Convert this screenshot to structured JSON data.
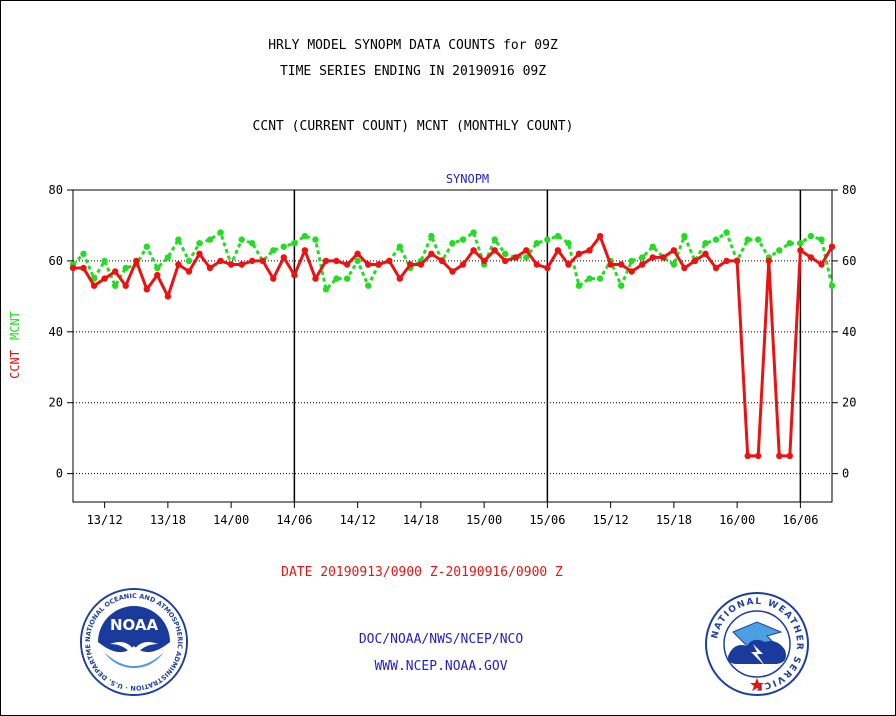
{
  "header": {
    "title_line1": "HRLY MODEL SYNOPM DATA COUNTS for 09Z",
    "title_line2": "TIME SERIES ENDING IN 20190916 09Z",
    "subtitle": "CCNT (CURRENT COUNT) MCNT (MONTHLY COUNT)"
  },
  "footer": {
    "date_range": "DATE 20190913/0900 Z-20190916/0900 Z",
    "agency": "DOC/NOAA/NWS/NCEP/NCO",
    "website": "WWW.NCEP.NOAA.GOV",
    "noaa_logo_text": "NOAA",
    "noaa_logo_ring_text": "NATIONAL OCEANIC AND ATMOSPHERIC ADMINISTRATION · U.S. DEPARTMENT OF COMMERCE",
    "nws_logo_ring_text": "NATIONAL WEATHER SERVICE"
  },
  "colors": {
    "ccnt": "#ee1111",
    "mcnt": "#22dd22",
    "panel_title": "#1f1fcc",
    "axis": "#000000"
  },
  "chart_data": {
    "type": "line",
    "title": "SYNOPM",
    "ylabel_parts": [
      "CCNT",
      "MCNT"
    ],
    "ylim": [
      -8,
      80
    ],
    "y_ticks": [
      0,
      20,
      40,
      60,
      80
    ],
    "x_tick_labels": [
      "13/12",
      "13/18",
      "14/00",
      "14/06",
      "14/12",
      "14/18",
      "15/00",
      "15/06",
      "15/12",
      "15/18",
      "16/00",
      "16/06"
    ],
    "x_tick_hours": [
      3,
      9,
      15,
      21,
      27,
      33,
      39,
      45,
      51,
      57,
      63,
      69
    ],
    "x_range_hours": [
      0,
      72
    ],
    "day_boundaries_hours": [
      21,
      45,
      69
    ],
    "dotted_gridlines": [
      0,
      20,
      40,
      60
    ],
    "series": [
      {
        "name": "CCNT",
        "values": [
          58,
          58,
          53,
          55,
          57,
          53,
          60,
          52,
          56,
          50,
          59,
          57,
          62,
          58,
          60,
          59,
          59,
          60,
          60,
          55,
          61,
          56,
          63,
          55,
          60,
          60,
          59,
          62,
          59,
          59,
          60,
          55,
          59,
          59,
          62,
          60,
          57,
          59,
          63,
          60,
          63,
          60,
          61,
          63,
          59,
          58,
          63,
          59,
          62,
          63,
          67,
          59,
          59,
          57,
          59,
          61,
          61,
          63,
          58,
          60,
          62,
          58,
          60,
          60,
          5,
          5,
          60,
          5,
          5,
          63,
          61,
          59,
          64
        ]
      },
      {
        "name": "MCNT",
        "values": [
          59,
          62,
          55,
          60,
          53,
          58,
          59,
          64,
          58,
          61,
          66,
          60,
          65,
          66,
          68,
          59,
          66,
          65,
          60,
          63,
          64,
          65,
          67,
          66,
          52,
          55,
          55,
          60,
          53,
          59,
          60,
          64,
          58,
          60,
          67,
          60,
          65,
          66,
          68,
          59,
          66,
          62,
          61,
          61,
          65,
          66,
          67,
          65,
          53,
          55,
          55,
          60,
          53,
          60,
          61,
          64,
          61,
          59,
          67,
          60,
          65,
          66,
          68,
          60,
          66,
          66,
          61,
          63,
          65,
          65,
          67,
          66,
          53
        ]
      }
    ]
  }
}
